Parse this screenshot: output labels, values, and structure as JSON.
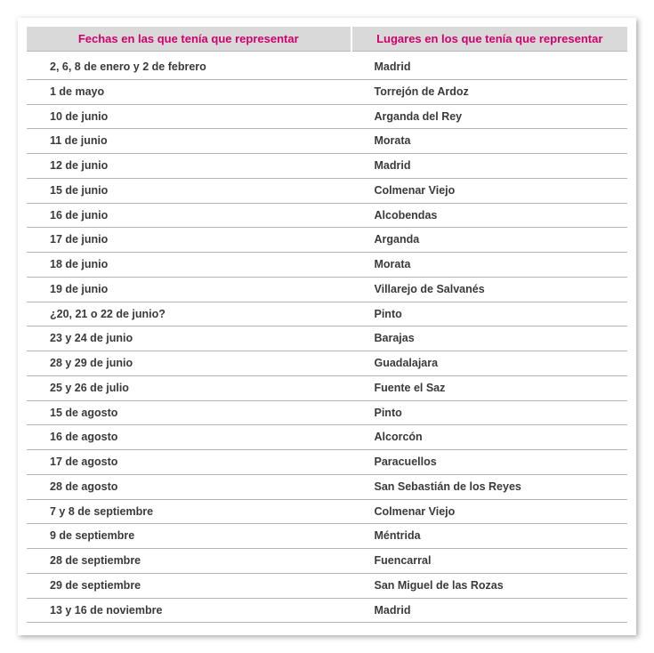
{
  "table": {
    "headers": {
      "dates": "Fechas en las que tenía que representar",
      "places": "Lugares en los que tenía que representar"
    },
    "header_bg": "#d9d9d9",
    "header_text_color": "#d2006b",
    "row_border_color": "#b5b5b5",
    "cell_text_color": "#3a3a3a",
    "font_family": "Arial",
    "header_fontsize": 13,
    "cell_fontsize": 12.5,
    "rows": [
      {
        "date": "2, 6, 8 de enero y 2 de febrero",
        "place": "Madrid"
      },
      {
        "date": "1 de mayo",
        "place": "Torrejón de Ardoz"
      },
      {
        "date": "10 de junio",
        "place": "Arganda del Rey"
      },
      {
        "date": "11 de junio",
        "place": "Morata"
      },
      {
        "date": "12 de junio",
        "place": "Madrid"
      },
      {
        "date": "15 de junio",
        "place": "Colmenar Viejo"
      },
      {
        "date": "16 de junio",
        "place": "Alcobendas"
      },
      {
        "date": "17 de junio",
        "place": "Arganda"
      },
      {
        "date": "18 de junio",
        "place": "Morata"
      },
      {
        "date": "19 de junio",
        "place": "Villarejo de Salvanés"
      },
      {
        "date": "¿20, 21 o 22 de junio?",
        "place": "Pinto"
      },
      {
        "date": "23 y 24 de junio",
        "place": "Barajas"
      },
      {
        "date": "28 y 29 de junio",
        "place": "Guadalajara"
      },
      {
        "date": "25 y 26 de julio",
        "place": "Fuente el Saz"
      },
      {
        "date": "15 de agosto",
        "place": "Pinto"
      },
      {
        "date": "16 de agosto",
        "place": "Alcorcón"
      },
      {
        "date": "17 de agosto",
        "place": "Paracuellos"
      },
      {
        "date": "28 de agosto",
        "place": "San Sebastián de los Reyes"
      },
      {
        "date": "7 y 8 de septiembre",
        "place": "Colmenar Viejo"
      },
      {
        "date": "9 de septiembre",
        "place": "Méntrida"
      },
      {
        "date": "28 de septiembre",
        "place": "Fuencarral"
      },
      {
        "date": "29 de septiembre",
        "place": "San Miguel de las Rozas"
      },
      {
        "date": "13 y 16 de noviembre",
        "place": "Madrid"
      }
    ]
  }
}
